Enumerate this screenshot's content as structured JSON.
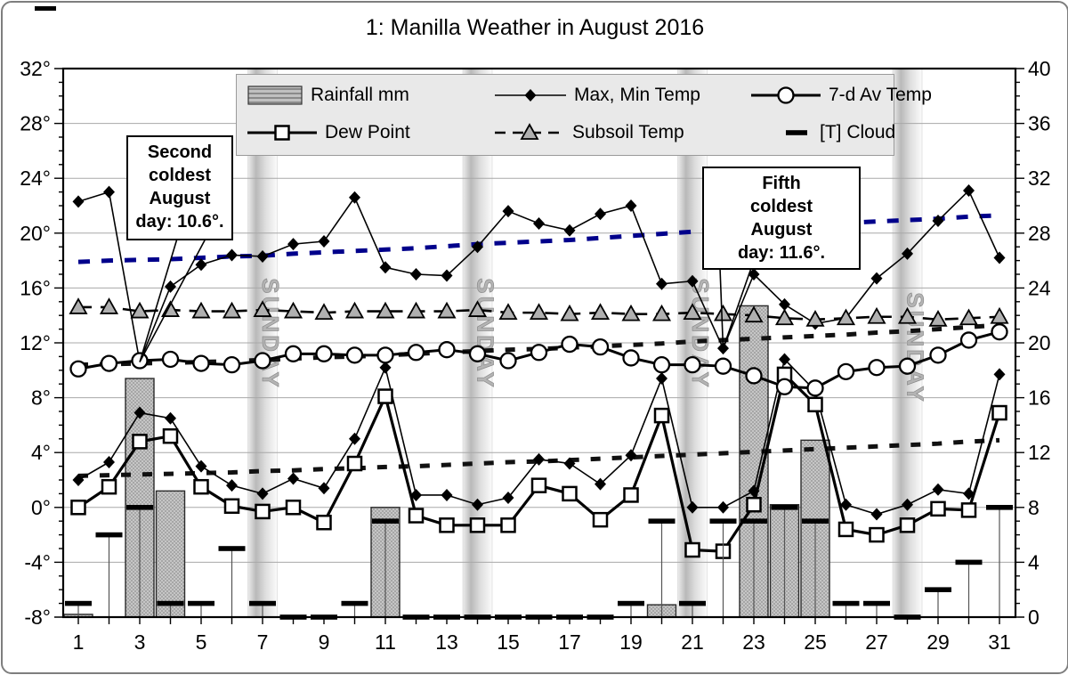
{
  "window": {
    "title": "1: Manilla Weather in August 2016"
  },
  "legend": {
    "items": [
      {
        "label": "Rainfall mm",
        "type": "bar-hatched"
      },
      {
        "label": "Max, Min Temp",
        "type": "line-diamond"
      },
      {
        "label": "7-d Av Temp",
        "type": "line-circle"
      },
      {
        "label": "Dew Point",
        "type": "line-square"
      },
      {
        "label": "Subsoil Temp",
        "type": "dashline-triangle"
      },
      {
        "label": "[T] Cloud",
        "type": "dash"
      }
    ]
  },
  "annotations": [
    {
      "lines": [
        "Second",
        "coldest",
        "August",
        "day: 10.6°."
      ],
      "target_day": 3,
      "target_value": 10.6
    },
    {
      "lines": [
        "Fifth",
        "coldest",
        "August",
        "day: 11.6°."
      ],
      "target_day": 22,
      "target_value": 11.6
    }
  ],
  "chart_data": {
    "type": "line+bar combo",
    "title": "1: Manilla Weather in August 2016",
    "grid": "horizontal, every 4 units",
    "legend_position": "top center",
    "sunday_label": "SUNDAY",
    "sunday_band_days": [
      7,
      14,
      21,
      28
    ],
    "days": [
      1,
      2,
      3,
      4,
      5,
      6,
      7,
      8,
      9,
      10,
      11,
      12,
      13,
      14,
      15,
      16,
      17,
      18,
      19,
      20,
      21,
      22,
      23,
      24,
      25,
      26,
      27,
      28,
      29,
      30,
      31
    ],
    "x_axis": {
      "tick_every": 1,
      "labels": [
        "1",
        "3",
        "5",
        "7",
        "9",
        "11",
        "13",
        "15",
        "17",
        "19",
        "21",
        "23",
        "25",
        "27",
        "29",
        "31"
      ],
      "label_days": [
        1,
        3,
        5,
        7,
        9,
        11,
        13,
        15,
        17,
        19,
        21,
        23,
        25,
        27,
        29,
        31
      ]
    },
    "left_axis": {
      "range": [
        -8,
        32
      ],
      "tick_step": 4,
      "minor_tick_step": 1,
      "tick_labels": [
        "32°",
        "28°",
        "24°",
        "20°",
        "16°",
        "12°",
        "8°",
        "4°",
        "0°",
        "-4°",
        "-8°"
      ]
    },
    "right_axis": {
      "range": [
        0,
        40
      ],
      "tick_step": 4,
      "minor_tick_step": 1,
      "tick_labels": [
        "40",
        "36",
        "32",
        "28",
        "24",
        "20",
        "16",
        "12",
        "8",
        "4",
        "0"
      ]
    },
    "series": [
      {
        "name": "Rainfall mm",
        "type": "bar",
        "axis": "right",
        "unit": "mm",
        "values": [
          0.2,
          0,
          17.4,
          9.2,
          0,
          0,
          0,
          0,
          0,
          0,
          8,
          0,
          0,
          0,
          0,
          0,
          0,
          0,
          0,
          0.9,
          0,
          0,
          22.7,
          8.2,
          12.9,
          0,
          0,
          0,
          0,
          0,
          0
        ]
      },
      {
        "name": "Max Temp",
        "legend_label": "Max, Min Temp",
        "type": "line",
        "marker": "filled-diamond",
        "axis": "left",
        "unit": "°C",
        "values": [
          22.3,
          23.0,
          10.6,
          16.1,
          17.7,
          18.4,
          18.3,
          19.2,
          19.4,
          22.6,
          17.5,
          17.0,
          16.9,
          19.0,
          21.6,
          20.7,
          20.2,
          21.4,
          22.0,
          16.3,
          16.5,
          11.6,
          17.0,
          14.8,
          13.4,
          13.8,
          16.7,
          18.5,
          20.9,
          23.1,
          18.2
        ]
      },
      {
        "name": "Min Temp",
        "legend_label": "Max, Min Temp",
        "type": "line",
        "marker": "filled-diamond",
        "axis": "left",
        "unit": "°C",
        "values": [
          2.0,
          3.3,
          6.9,
          6.5,
          3.0,
          1.6,
          1.0,
          2.1,
          1.4,
          5.0,
          10.2,
          0.9,
          0.9,
          0.2,
          0.7,
          3.5,
          3.2,
          1.7,
          3.8,
          9.4,
          0.0,
          0.0,
          1.2,
          10.8,
          8.5,
          0.2,
          -0.5,
          0.2,
          1.3,
          1.0,
          9.7
        ]
      },
      {
        "name": "7-d Av Temp",
        "type": "line",
        "marker": "open-circle",
        "axis": "left",
        "unit": "°C",
        "values": [
          10.1,
          10.5,
          10.7,
          10.8,
          10.5,
          10.4,
          10.7,
          11.2,
          11.2,
          11.1,
          11.1,
          11.3,
          11.5,
          11.2,
          10.7,
          11.3,
          11.9,
          11.7,
          10.9,
          10.4,
          10.4,
          10.3,
          9.6,
          8.8,
          8.7,
          9.9,
          10.2,
          10.3,
          11.1,
          12.2,
          12.8
        ]
      },
      {
        "name": "Dew Point",
        "type": "line",
        "marker": "open-square",
        "axis": "left",
        "unit": "°C",
        "values": [
          0.0,
          1.5,
          4.8,
          5.2,
          1.5,
          0.1,
          -0.3,
          0.0,
          -1.1,
          3.2,
          8.1,
          -0.6,
          -1.3,
          -1.3,
          -1.3,
          1.6,
          1.0,
          -0.9,
          0.9,
          6.7,
          -3.1,
          -3.2,
          0.2,
          9.7,
          7.5,
          -1.6,
          -2.0,
          -1.3,
          -0.1,
          -0.2,
          6.9
        ]
      },
      {
        "name": "Subsoil Temp",
        "type": "dashed-line",
        "marker": "gray-triangle",
        "axis": "left",
        "unit": "°C",
        "values": [
          14.6,
          14.6,
          14.3,
          14.4,
          14.3,
          14.3,
          14.4,
          14.3,
          14.2,
          14.3,
          14.3,
          14.3,
          14.3,
          14.4,
          14.2,
          14.2,
          14.1,
          14.2,
          14.1,
          14.1,
          14.2,
          14.1,
          14.0,
          13.8,
          13.7,
          13.8,
          13.9,
          13.9,
          13.7,
          13.8,
          13.9
        ]
      },
      {
        "name": "[T] Cloud",
        "type": "dash-marker-with-stem",
        "unit": "oktas",
        "note": "plotted on left axis at (oktas - 8)",
        "values": [
          1,
          6,
          8,
          1,
          1,
          5,
          1,
          0,
          0,
          1,
          7,
          0,
          0,
          0,
          0,
          0,
          0,
          0,
          1,
          7,
          1,
          7,
          7,
          8,
          7,
          1,
          1,
          0,
          2,
          4,
          8
        ]
      }
    ],
    "unlabeled_trend_lines": [
      {
        "name": "blue dashed trend",
        "color": "#00008b",
        "values": [
          17.9,
          18.0,
          18.05,
          18.1,
          18.2,
          18.3,
          18.35,
          18.5,
          18.6,
          18.7,
          18.8,
          18.9,
          19.05,
          19.2,
          19.3,
          19.4,
          19.5,
          19.65,
          19.8,
          19.95,
          20.1,
          20.3,
          20.45,
          20.55,
          20.65,
          20.75,
          20.85,
          20.95,
          21.05,
          21.2,
          21.3
        ]
      },
      {
        "name": "black dotted trend (upper)",
        "color": "#111111",
        "values": [
          10.4,
          10.45,
          10.5,
          10.55,
          10.6,
          10.65,
          10.75,
          10.85,
          10.95,
          11.0,
          11.1,
          11.2,
          11.3,
          11.4,
          11.5,
          11.55,
          11.65,
          11.75,
          11.85,
          11.95,
          12.1,
          12.2,
          12.3,
          12.4,
          12.5,
          12.6,
          12.75,
          12.85,
          13.0,
          13.15,
          13.3
        ]
      },
      {
        "name": "black dotted trend (lower)",
        "color": "#111111",
        "values": [
          2.3,
          2.35,
          2.4,
          2.45,
          2.5,
          2.55,
          2.65,
          2.7,
          2.8,
          2.85,
          2.95,
          3.0,
          3.1,
          3.2,
          3.3,
          3.35,
          3.45,
          3.55,
          3.65,
          3.75,
          3.85,
          3.95,
          4.05,
          4.15,
          4.25,
          4.35,
          4.45,
          4.55,
          4.65,
          4.8,
          4.9
        ]
      }
    ],
    "colors": {
      "bar_fill": "#c6c6c6",
      "bar_dot": "#8f8f8f",
      "bar_border": "#2a2a2a",
      "grid": "#a8a8a8",
      "frame": "#000000",
      "sunday_band_mid": "#b9b9b9",
      "sunday_text": "#b4b4b4",
      "triangle_fill": "#b0b0b0",
      "blue_trend": "#00008b"
    }
  }
}
